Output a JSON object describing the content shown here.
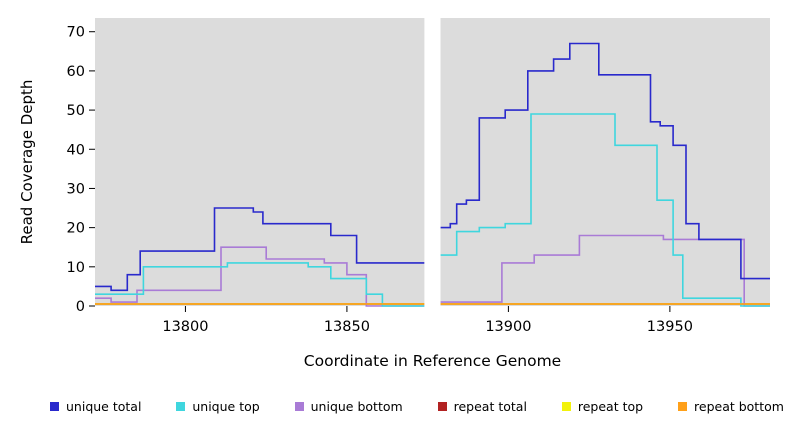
{
  "figure": {
    "background": "#FFFFFF",
    "plot_background": "#DCDCDC"
  },
  "chart_data": {
    "type": "line",
    "subtype": "step",
    "title": "",
    "xlabel": "Coordinate in Reference Genome",
    "ylabel": "Read Coverage Depth",
    "xlim": [
      13772,
      13981
    ],
    "ylim": [
      0,
      73.5
    ],
    "x_ticks": [
      "13800",
      "13850",
      "13900",
      "13950"
    ],
    "x_tick_values": [
      13800,
      13850,
      13900,
      13950
    ],
    "y_ticks": [
      "0",
      "10",
      "20",
      "30",
      "40",
      "50",
      "60",
      "70"
    ],
    "y_tick_values": [
      0,
      10,
      20,
      30,
      40,
      50,
      60,
      70
    ],
    "grid": false,
    "legend_position": "bottom",
    "gap_region": [
      13874,
      13879
    ],
    "segments": {
      "left": [
        13772,
        13874
      ],
      "right": [
        13879,
        13981
      ]
    },
    "draw_order": [
      "repeat total",
      "repeat top",
      "unique bottom",
      "unique top",
      "unique total",
      "repeat bottom"
    ],
    "series": [
      {
        "name": "unique total",
        "color": "#2929CC",
        "left_steps": [
          [
            13772,
            5
          ],
          [
            13777,
            4
          ],
          [
            13782,
            8
          ],
          [
            13786,
            14
          ],
          [
            13809,
            25
          ],
          [
            13821,
            24
          ],
          [
            13824,
            21
          ],
          [
            13845,
            18
          ],
          [
            13853,
            11
          ]
        ],
        "right_steps": [
          [
            13879,
            20
          ],
          [
            13882,
            21
          ],
          [
            13884,
            26
          ],
          [
            13887,
            27
          ],
          [
            13891,
            48
          ],
          [
            13899,
            50
          ],
          [
            13906,
            60
          ],
          [
            13914,
            63
          ],
          [
            13919,
            67
          ],
          [
            13928,
            59
          ],
          [
            13944,
            47
          ],
          [
            13947,
            46
          ],
          [
            13951,
            41
          ],
          [
            13955,
            21
          ],
          [
            13959,
            17
          ],
          [
            13972,
            7
          ]
        ]
      },
      {
        "name": "unique top",
        "color": "#3FD6DE",
        "left_steps": [
          [
            13772,
            3
          ],
          [
            13787,
            10
          ],
          [
            13813,
            11
          ],
          [
            13838,
            10
          ],
          [
            13845,
            7
          ],
          [
            13856,
            3
          ],
          [
            13861,
            0
          ]
        ],
        "right_steps": [
          [
            13879,
            13
          ],
          [
            13884,
            19
          ],
          [
            13891,
            20
          ],
          [
            13899,
            21
          ],
          [
            13907,
            49
          ],
          [
            13933,
            41
          ],
          [
            13946,
            27
          ],
          [
            13951,
            13
          ],
          [
            13954,
            2
          ],
          [
            13972,
            0
          ]
        ]
      },
      {
        "name": "unique bottom",
        "color": "#A97BD6",
        "left_steps": [
          [
            13772,
            2
          ],
          [
            13777,
            1
          ],
          [
            13785,
            4
          ],
          [
            13811,
            15
          ],
          [
            13825,
            12
          ],
          [
            13843,
            11
          ],
          [
            13850,
            8
          ],
          [
            13856,
            0
          ]
        ],
        "right_steps": [
          [
            13879,
            1
          ],
          [
            13898,
            11
          ],
          [
            13908,
            13
          ],
          [
            13922,
            18
          ],
          [
            13948,
            17
          ],
          [
            13973,
            0
          ]
        ]
      },
      {
        "name": "repeat total",
        "color": "#B22222",
        "left_steps": [
          [
            13772,
            0.5
          ]
        ],
        "right_steps": [
          [
            13879,
            0.5
          ]
        ]
      },
      {
        "name": "repeat top",
        "color": "#F2F20C",
        "left_steps": [
          [
            13772,
            0.5
          ]
        ],
        "right_steps": [
          [
            13879,
            0.5
          ]
        ]
      },
      {
        "name": "repeat bottom",
        "color": "#FFA019",
        "left_steps": [
          [
            13772,
            0.5
          ]
        ],
        "right_steps": [
          [
            13879,
            0.5
          ]
        ]
      }
    ]
  }
}
